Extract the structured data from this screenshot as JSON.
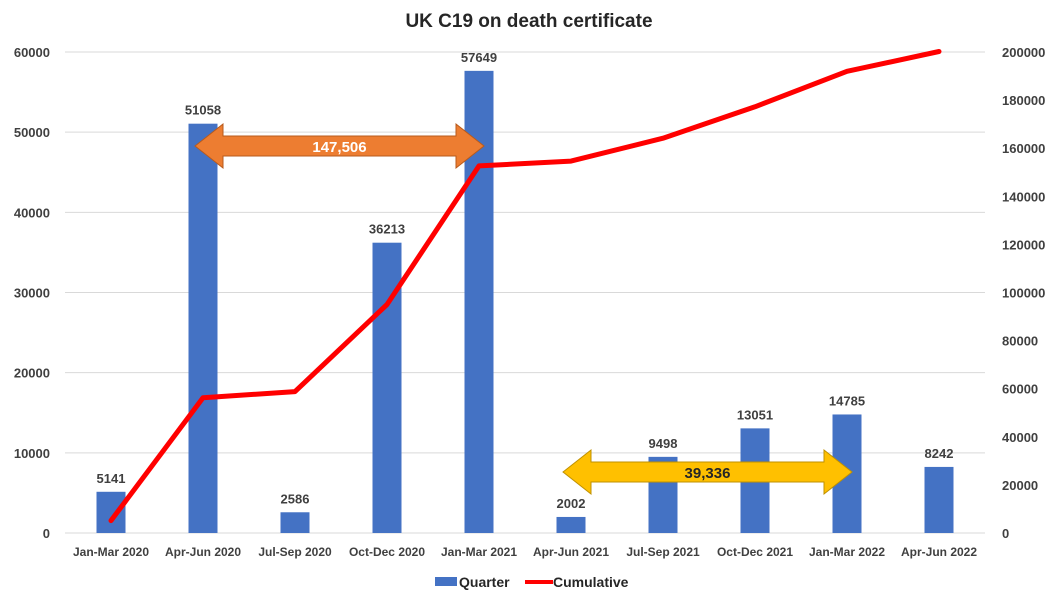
{
  "chart_data": {
    "type": "bar",
    "title": "UK C19 on death certificate",
    "categories": [
      "Jan-Mar 2020",
      "Apr-Jun 2020",
      "Jul-Sep 2020",
      "Oct-Dec 2020",
      "Jan-Mar 2021",
      "Apr-Jun 2021",
      "Jul-Sep 2021",
      "Oct-Dec 2021",
      "Jan-Mar 2022",
      "Apr-Jun 2022"
    ],
    "series": [
      {
        "name": "Quarter",
        "type": "bar",
        "axis": "left",
        "color": "#4472c4",
        "values": [
          5141,
          51058,
          2586,
          36213,
          57649,
          2002,
          9498,
          13051,
          14785,
          8242
        ]
      },
      {
        "name": "Cumulative",
        "type": "line",
        "axis": "right",
        "color": "#ff0000",
        "values": [
          5141,
          56199,
          58785,
          94998,
          152647,
          154649,
          164147,
          177198,
          191983,
          200225
        ]
      }
    ],
    "y_left": {
      "min": 0,
      "max": 60000,
      "step": 10000,
      "ticks": [
        "0",
        "10000",
        "20000",
        "30000",
        "40000",
        "50000",
        "60000"
      ]
    },
    "y_right": {
      "min": 0,
      "max": 200000,
      "step": 20000,
      "ticks": [
        "0",
        "20000",
        "40000",
        "60000",
        "80000",
        "100000",
        "120000",
        "140000",
        "160000",
        "180000",
        "200000"
      ]
    },
    "annotations": [
      {
        "label": "147,506",
        "from_category": 1,
        "to_category": 4,
        "color": "#ed7d31",
        "text_color": "#ffffff"
      },
      {
        "label": "39,336",
        "from_category": 5,
        "to_category": 8,
        "color": "#ffc000",
        "text_color": "#262626"
      }
    ],
    "legend_position": "bottom",
    "grid": true
  }
}
